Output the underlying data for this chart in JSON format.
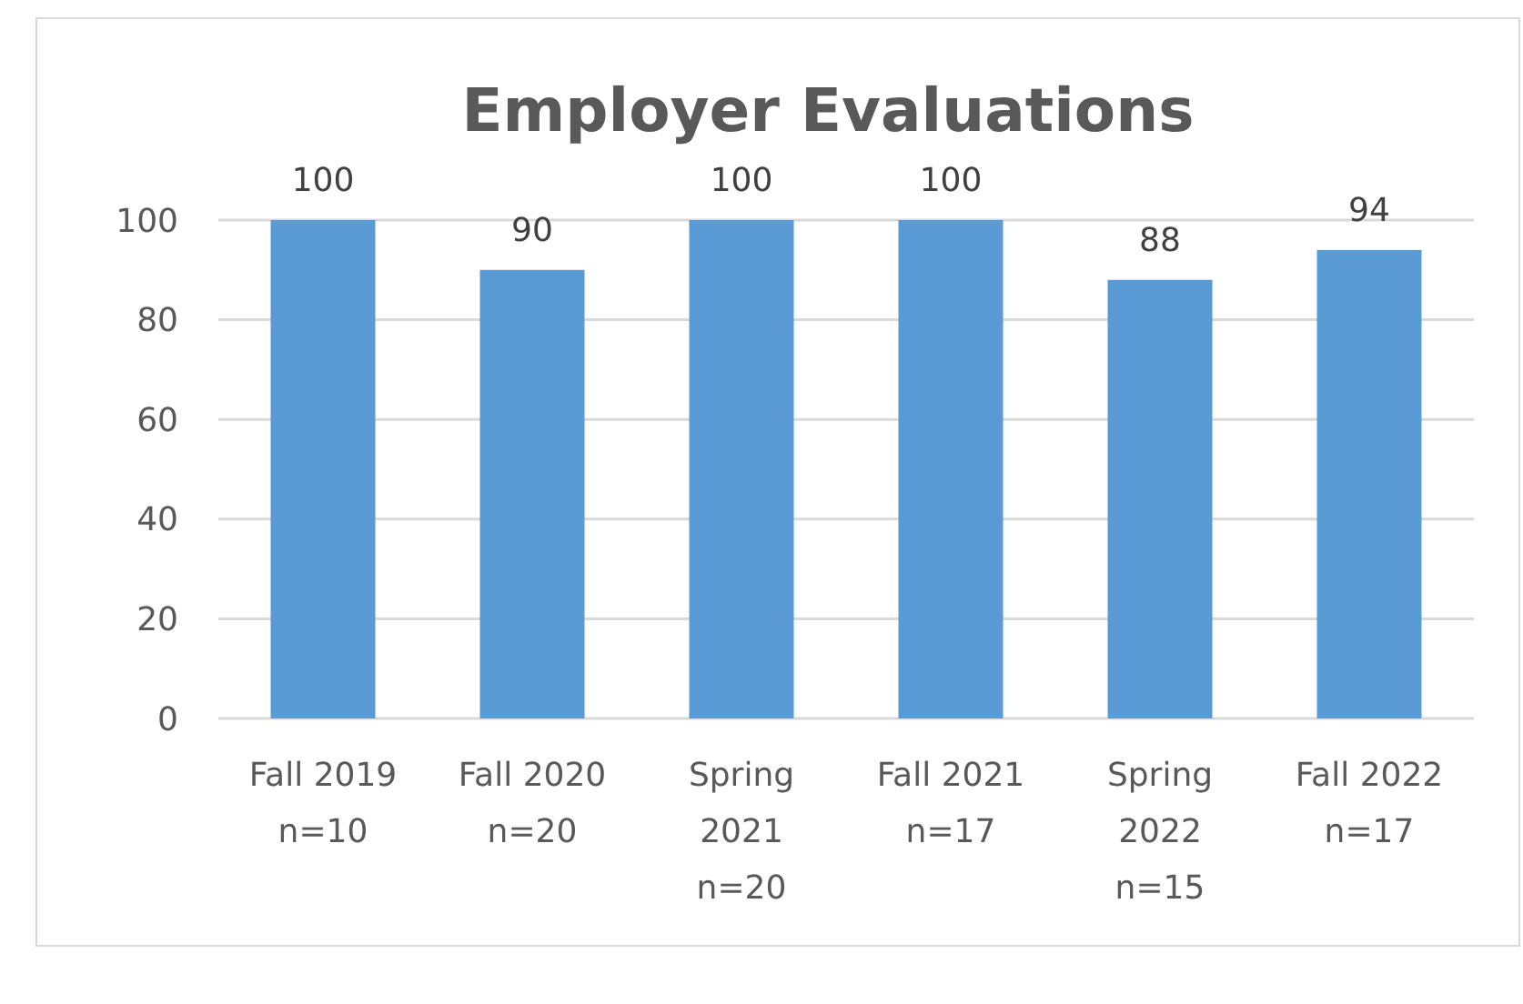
{
  "chart_data": {
    "type": "bar",
    "title": "Employer Evaluations",
    "categories": [
      "Fall 2019\nn=10",
      "Fall 2020\nn=20",
      "Spring\n2021\nn=20",
      "Fall 2021\nn=17",
      "Spring\n2022\nn=15",
      "Fall 2022\nn=17"
    ],
    "values": [
      100,
      90,
      100,
      100,
      88,
      94
    ],
    "color": "#5b9bd5",
    "ylim": [
      0,
      100
    ],
    "yticks": [
      0,
      20,
      40,
      60,
      80,
      100
    ],
    "grid": "y",
    "data_labels": true
  }
}
